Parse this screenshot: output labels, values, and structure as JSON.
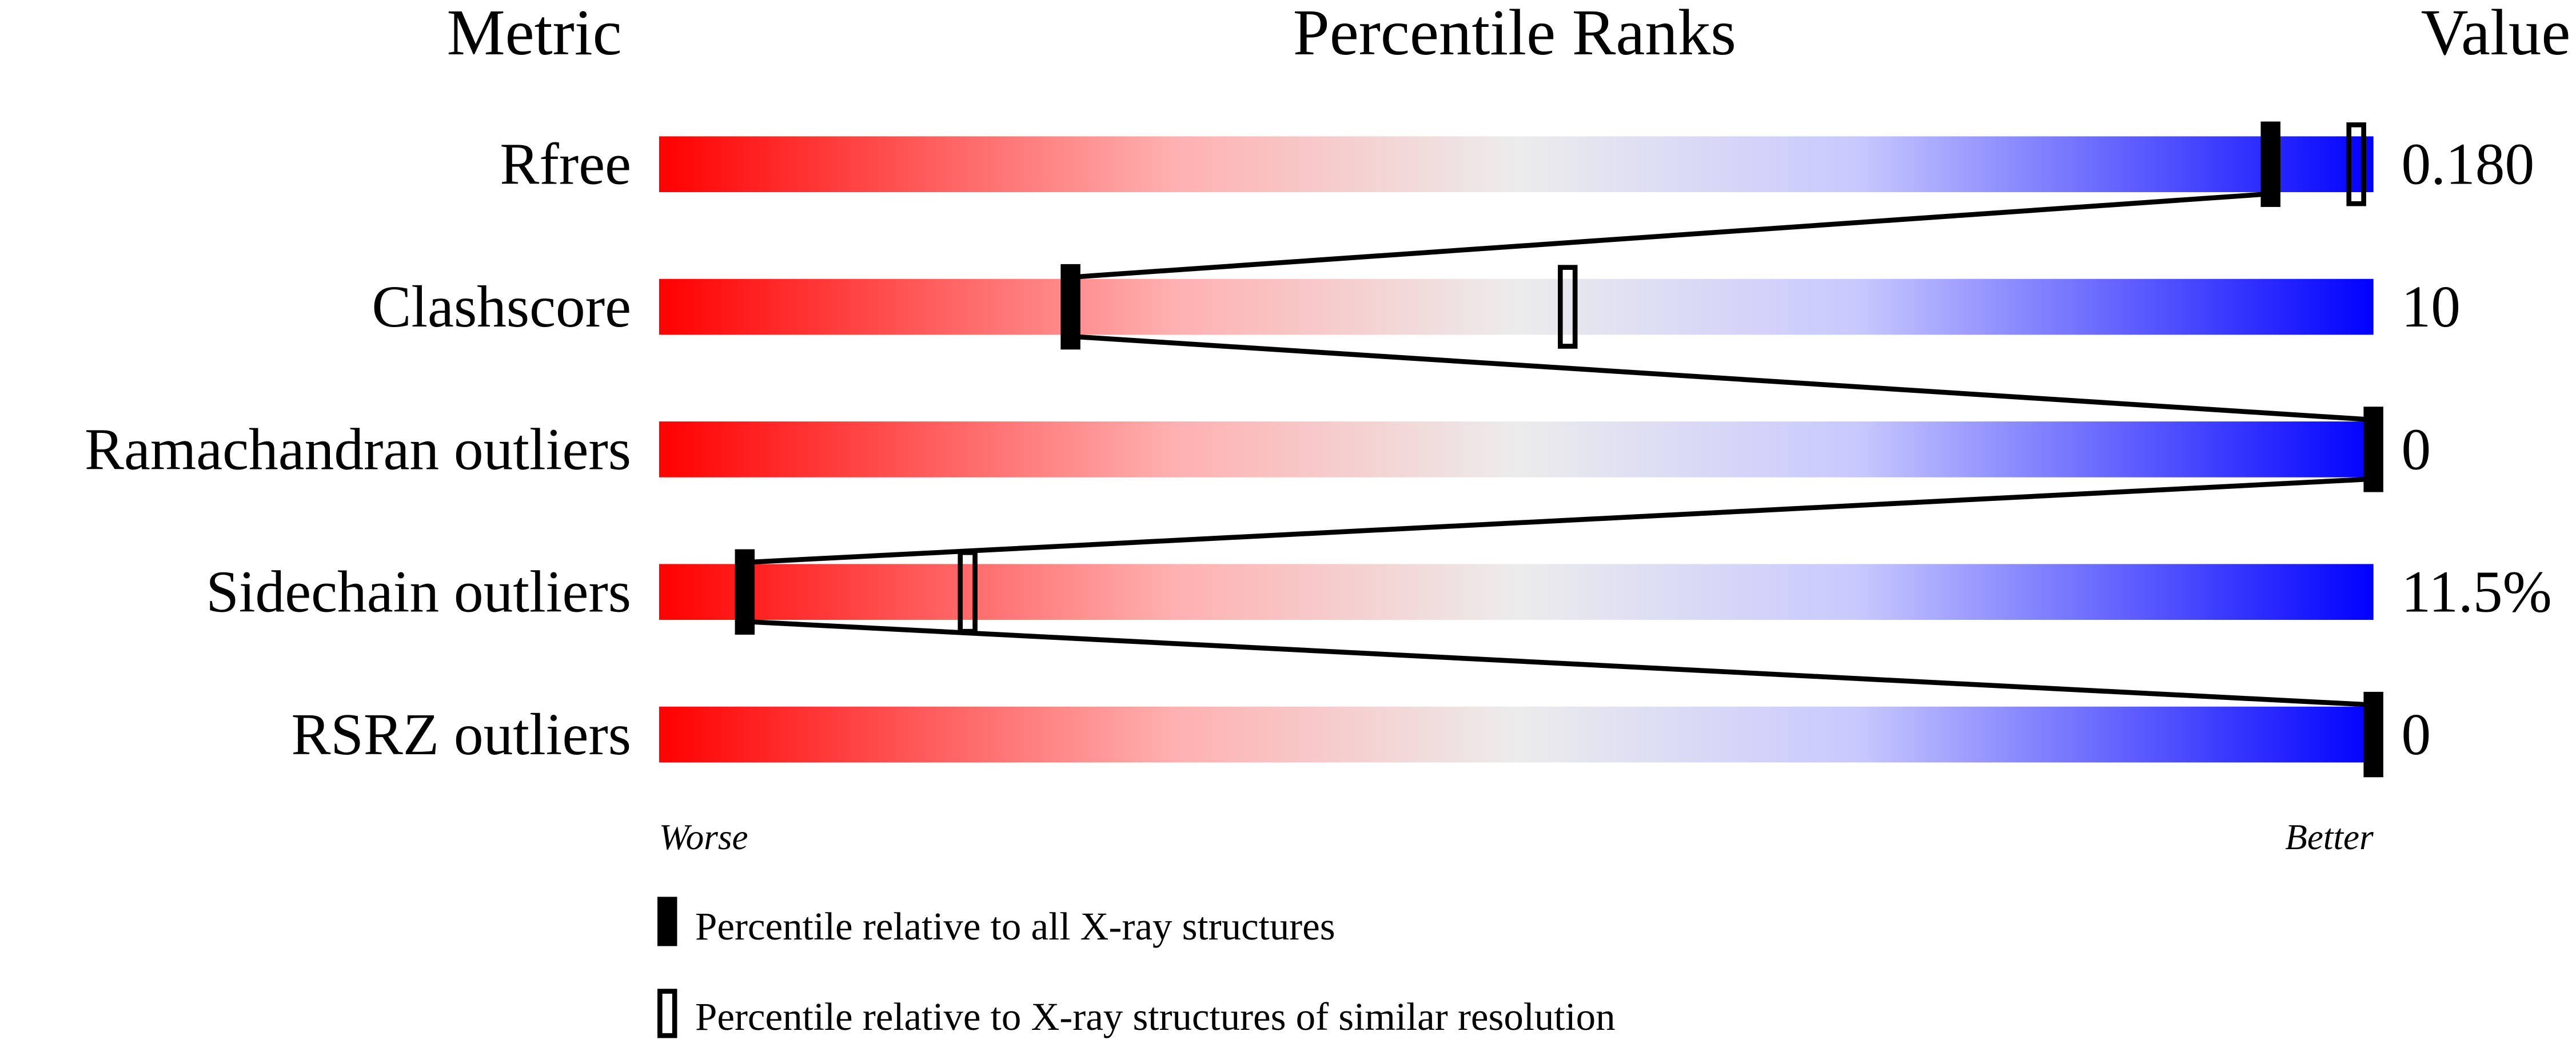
{
  "chart_data": {
    "type": "percentile-slider",
    "headers": {
      "metric": "Metric",
      "ranks": "Percentile Ranks",
      "value": "Value"
    },
    "axis": {
      "left_label": "Worse",
      "right_label": "Better",
      "range": [
        0,
        100
      ]
    },
    "gradient_colors": {
      "worse": "#ff0000",
      "middle": "#eeeeee",
      "better": "#0000ff"
    },
    "rows": [
      {
        "metric": "Rfree",
        "value": "0.180",
        "percentile_all": 94,
        "percentile_similar": 99
      },
      {
        "metric": "Clashscore",
        "value": "10",
        "percentile_all": 24,
        "percentile_similar": 53
      },
      {
        "metric": "Ramachandran outliers",
        "value": "0",
        "percentile_all": 100,
        "percentile_similar": null
      },
      {
        "metric": "Sidechain outliers",
        "value": "11.5%",
        "percentile_all": 5,
        "percentile_similar": 18
      },
      {
        "metric": "RSRZ outliers",
        "value": "0",
        "percentile_all": 100,
        "percentile_similar": null
      }
    ],
    "legend": {
      "all": "Percentile relative to all X-ray structures",
      "similar": "Percentile relative to X-ray structures of similar resolution"
    }
  }
}
